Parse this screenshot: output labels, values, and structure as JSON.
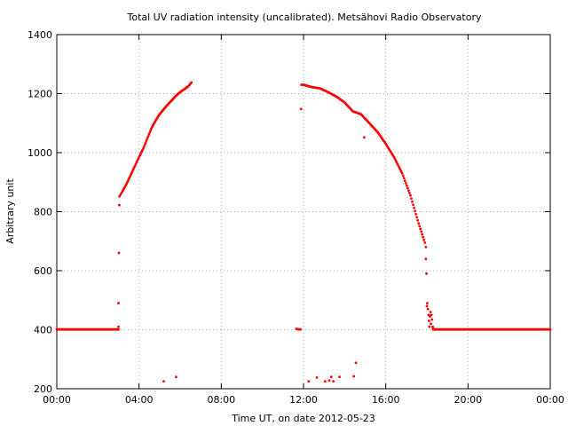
{
  "chart_data": {
    "type": "scatter",
    "title": "Total UV radiation intensity (uncalibrated). Metsähovi Radio Observatory",
    "xlabel": "Time UT, on date 2012-05-23",
    "ylabel": "Arbitrary unit",
    "xlim": [
      0,
      24
    ],
    "ylim": [
      200,
      1400
    ],
    "x_ticks": [
      {
        "value": 0,
        "label": "00:00"
      },
      {
        "value": 4,
        "label": "04:00"
      },
      {
        "value": 8,
        "label": "08:00"
      },
      {
        "value": 12,
        "label": "12:00"
      },
      {
        "value": 16,
        "label": "16:00"
      },
      {
        "value": 20,
        "label": "20:00"
      },
      {
        "value": 24,
        "label": "00:00"
      }
    ],
    "y_ticks": [
      200,
      400,
      600,
      800,
      1000,
      1200,
      1400
    ],
    "grid": true,
    "series_color": "#ff0000",
    "series": [
      {
        "segments": [
          {
            "x": [
              0.0,
              0.5,
              1.0,
              1.5,
              2.0,
              2.5,
              3.0
            ],
            "y": [
              401,
              401,
              401,
              401,
              401,
              401,
              401
            ]
          },
          {
            "x": [
              3.05,
              3.2,
              3.4,
              3.6,
              3.8,
              4.0,
              4.2,
              4.4,
              4.6,
              4.8,
              5.0,
              5.2,
              5.4,
              5.6,
              5.8,
              6.0,
              6.2,
              6.4,
              6.55
            ],
            "y": [
              852,
              870,
              895,
              925,
              955,
              985,
              1013,
              1048,
              1082,
              1108,
              1130,
              1147,
              1163,
              1178,
              1193,
              1205,
              1215,
              1225,
              1238
            ]
          },
          {
            "x": [
              11.65,
              11.75,
              11.85
            ],
            "y": [
              403,
              401,
              401
            ]
          },
          {
            "x": [
              11.9,
              12.0,
              12.4,
              12.8,
              13.2,
              13.6,
              14.0,
              14.4,
              14.8,
              15.2,
              15.6,
              16.0,
              16.4,
              16.8,
              17.2,
              17.6,
              17.9,
              17.95
            ],
            "y": [
              1230,
              1230,
              1222,
              1218,
              1205,
              1190,
              1170,
              1140,
              1130,
              1100,
              1070,
              1030,
              985,
              930,
              855,
              760,
              695,
              680
            ]
          },
          {
            "x": [
              18.3,
              18.6,
              19.0,
              19.5,
              20.0,
              20.5,
              21.0,
              21.5,
              22.0,
              22.5,
              23.0,
              23.5,
              24.0
            ],
            "y": [
              401,
              401,
              401,
              401,
              401,
              401,
              401,
              401,
              401,
              401,
              401,
              401,
              401
            ]
          }
        ],
        "points": [
          {
            "x": 3.0,
            "y": 410
          },
          {
            "x": 3.0,
            "y": 490
          },
          {
            "x": 3.02,
            "y": 660
          },
          {
            "x": 3.04,
            "y": 822
          },
          {
            "x": 5.2,
            "y": 225
          },
          {
            "x": 5.8,
            "y": 240
          },
          {
            "x": 11.88,
            "y": 1148
          },
          {
            "x": 12.25,
            "y": 225
          },
          {
            "x": 12.65,
            "y": 238
          },
          {
            "x": 13.05,
            "y": 225
          },
          {
            "x": 13.25,
            "y": 228
          },
          {
            "x": 13.35,
            "y": 240
          },
          {
            "x": 13.45,
            "y": 225
          },
          {
            "x": 13.75,
            "y": 240
          },
          {
            "x": 14.45,
            "y": 242
          },
          {
            "x": 14.55,
            "y": 288
          },
          {
            "x": 14.95,
            "y": 1052
          },
          {
            "x": 17.95,
            "y": 640
          },
          {
            "x": 17.98,
            "y": 590
          },
          {
            "x": 18.0,
            "y": 480
          },
          {
            "x": 18.02,
            "y": 490
          },
          {
            "x": 18.05,
            "y": 470
          },
          {
            "x": 18.08,
            "y": 450
          },
          {
            "x": 18.1,
            "y": 430
          },
          {
            "x": 18.12,
            "y": 410
          },
          {
            "x": 18.15,
            "y": 445
          },
          {
            "x": 18.18,
            "y": 460
          },
          {
            "x": 18.2,
            "y": 420
          },
          {
            "x": 18.22,
            "y": 450
          },
          {
            "x": 18.25,
            "y": 435
          },
          {
            "x": 18.28,
            "y": 410
          },
          {
            "x": 18.3,
            "y": 405
          }
        ]
      }
    ]
  }
}
